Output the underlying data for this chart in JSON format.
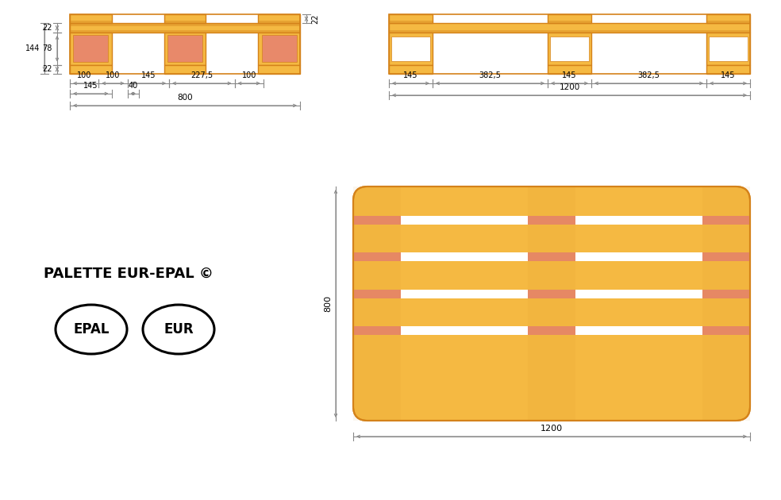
{
  "bg_color": "#ffffff",
  "orange_fill": "#f5b942",
  "orange_dark": "#d4821a",
  "orange_border": "#c97a10",
  "salmon": "#e8896a",
  "dim_color": "#888888",
  "title": "PALETTE EUR-EPAL ©"
}
